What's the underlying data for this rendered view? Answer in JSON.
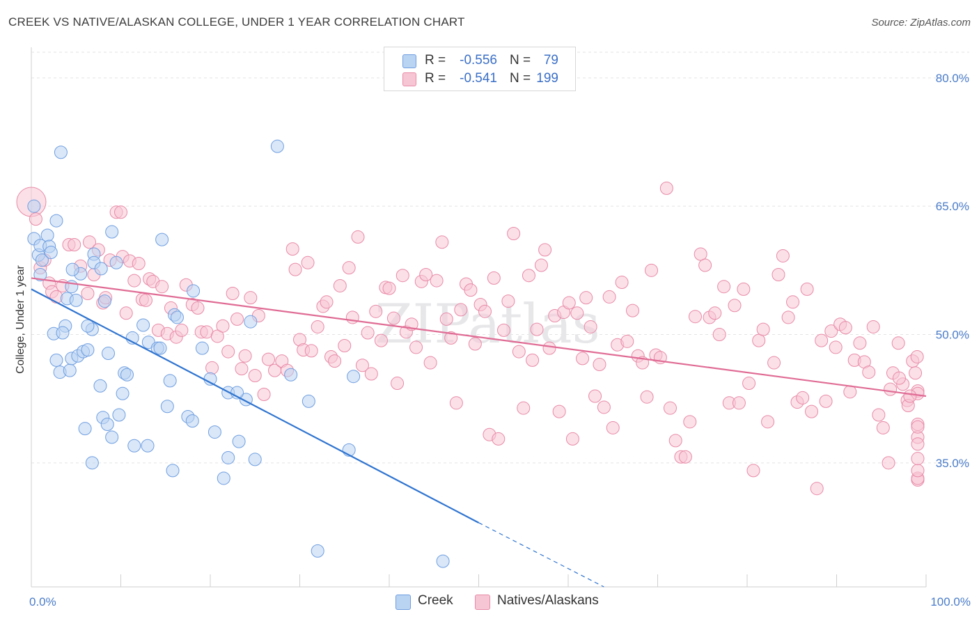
{
  "title": "CREEK VS NATIVE/ALASKAN COLLEGE, UNDER 1 YEAR CORRELATION CHART",
  "source": "Source: ZipAtlas.com",
  "watermark": "ZIPatlas",
  "colors": {
    "blue_fill": "#b9d3f3",
    "blue_stroke": "#6f9ee0",
    "blue_line": "#2f74d0",
    "pink_fill": "#f7c6d5",
    "pink_stroke": "#e88aa7",
    "pink_line": "#e06b94",
    "tick": "#4a7cc9",
    "grid": "#e3e3e3"
  },
  "legend": {
    "rows": [
      {
        "r_label": "R =",
        "r_value": "-0.556",
        "n_label": "N =",
        "n_value": "79"
      },
      {
        "r_label": "R =",
        "r_value": "-0.541",
        "n_label": "N =",
        "n_value": "199"
      }
    ]
  },
  "bottom_legend": {
    "creek": "Creek",
    "natives": "Natives/Alaskans"
  },
  "chart_data": {
    "type": "scatter",
    "xlabel": "",
    "ylabel": "College, Under 1 year",
    "xlim": [
      0,
      100
    ],
    "ylim": [
      20.5,
      83
    ],
    "x_tick_labels": [
      "0.0%",
      "100.0%"
    ],
    "y_ticks": [
      35,
      50,
      65,
      80
    ],
    "y_tick_labels": [
      "35.0%",
      "50.0%",
      "65.0%",
      "80.0%"
    ],
    "series": [
      {
        "name": "Creek",
        "trend": {
          "x0": 0,
          "y0": 55.3,
          "x1": 50,
          "y1": 28.0,
          "dash_to_x": 64,
          "dash_to_y": 20.5
        },
        "points": [
          [
            0.3,
            65.0
          ],
          [
            0.3,
            61.2
          ],
          [
            0.8,
            59.3
          ],
          [
            1.0,
            60.4
          ],
          [
            1.2,
            58.7
          ],
          [
            1.0,
            57.0
          ],
          [
            1.8,
            61.6
          ],
          [
            2.0,
            60.3
          ],
          [
            2.2,
            59.6
          ],
          [
            2.8,
            63.3
          ],
          [
            3.3,
            71.3
          ],
          [
            4.0,
            54.2
          ],
          [
            3.8,
            51.0
          ],
          [
            2.5,
            50.1
          ],
          [
            3.5,
            50.2
          ],
          [
            4.5,
            55.6
          ],
          [
            5.0,
            54.0
          ],
          [
            5.5,
            57.1
          ],
          [
            4.6,
            57.6
          ],
          [
            7.0,
            59.4
          ],
          [
            7.0,
            58.4
          ],
          [
            7.8,
            57.7
          ],
          [
            8.2,
            53.9
          ],
          [
            9.0,
            62.0
          ],
          [
            9.5,
            58.4
          ],
          [
            2.8,
            47.0
          ],
          [
            3.2,
            45.6
          ],
          [
            4.3,
            45.8
          ],
          [
            4.5,
            47.2
          ],
          [
            5.2,
            47.5
          ],
          [
            5.8,
            48.0
          ],
          [
            6.3,
            48.2
          ],
          [
            6.8,
            50.6
          ],
          [
            6.3,
            51.0
          ],
          [
            8.6,
            47.8
          ],
          [
            7.7,
            44.0
          ],
          [
            10.4,
            45.5
          ],
          [
            10.7,
            45.3
          ],
          [
            11.3,
            49.6
          ],
          [
            12.5,
            51.1
          ],
          [
            13.1,
            49.1
          ],
          [
            14.1,
            48.4
          ],
          [
            14.4,
            48.4
          ],
          [
            14.6,
            61.1
          ],
          [
            16.0,
            52.3
          ],
          [
            16.3,
            52.0
          ],
          [
            18.1,
            55.1
          ],
          [
            19.1,
            48.4
          ],
          [
            15.5,
            44.6
          ],
          [
            20.0,
            44.8
          ],
          [
            10.2,
            43.1
          ],
          [
            8.0,
            40.3
          ],
          [
            8.5,
            39.5
          ],
          [
            9.8,
            40.6
          ],
          [
            6.0,
            39.0
          ],
          [
            9.0,
            38.0
          ],
          [
            11.5,
            37.0
          ],
          [
            13.0,
            37.0
          ],
          [
            15.2,
            41.6
          ],
          [
            17.5,
            40.4
          ],
          [
            18.0,
            39.9
          ],
          [
            20.5,
            38.6
          ],
          [
            22.0,
            43.2
          ],
          [
            23.2,
            37.5
          ],
          [
            24.0,
            42.4
          ],
          [
            6.8,
            35.0
          ],
          [
            15.8,
            34.1
          ],
          [
            22.0,
            35.6
          ],
          [
            25.0,
            35.4
          ],
          [
            21.5,
            33.2
          ],
          [
            24.5,
            51.5
          ],
          [
            27.5,
            72.0
          ],
          [
            31.0,
            42.2
          ],
          [
            32.0,
            24.7
          ],
          [
            36.0,
            45.1
          ],
          [
            35.5,
            36.5
          ],
          [
            46.0,
            23.5
          ],
          [
            29.0,
            45.3
          ],
          [
            23.0,
            43.2
          ]
        ]
      },
      {
        "name": "Natives/Alaskans",
        "trend": {
          "x0": 0,
          "y0": 56.6,
          "x1": 100,
          "y1": 42.8
        },
        "points": [
          [
            0.0,
            65.5
          ],
          [
            0.5,
            63.5
          ],
          [
            1.0,
            57.8
          ],
          [
            1.5,
            58.7
          ],
          [
            2.0,
            56.0
          ],
          [
            2.3,
            55.0
          ],
          [
            2.8,
            54.4
          ],
          [
            3.5,
            55.7
          ],
          [
            4.2,
            60.5
          ],
          [
            4.8,
            60.5
          ],
          [
            5.5,
            58.0
          ],
          [
            6.3,
            54.8
          ],
          [
            6.5,
            60.8
          ],
          [
            7.0,
            57.0
          ],
          [
            7.5,
            59.9
          ],
          [
            8.0,
            53.7
          ],
          [
            8.3,
            54.3
          ],
          [
            8.8,
            58.7
          ],
          [
            9.5,
            64.3
          ],
          [
            10.0,
            64.3
          ],
          [
            10.2,
            59.1
          ],
          [
            10.6,
            52.5
          ],
          [
            11.0,
            58.6
          ],
          [
            11.5,
            56.3
          ],
          [
            12.0,
            58.3
          ],
          [
            12.4,
            54.1
          ],
          [
            12.8,
            54.0
          ],
          [
            13.2,
            56.5
          ],
          [
            13.6,
            56.2
          ],
          [
            14.2,
            50.5
          ],
          [
            14.6,
            55.6
          ],
          [
            15.2,
            50.1
          ],
          [
            15.6,
            53.1
          ],
          [
            16.2,
            49.7
          ],
          [
            16.8,
            50.5
          ],
          [
            17.3,
            55.8
          ],
          [
            18.0,
            53.5
          ],
          [
            18.6,
            53.1
          ],
          [
            19.0,
            50.3
          ],
          [
            19.6,
            50.3
          ],
          [
            20.2,
            46.1
          ],
          [
            20.8,
            49.8
          ],
          [
            21.4,
            51.0
          ],
          [
            22.0,
            48.0
          ],
          [
            22.5,
            54.8
          ],
          [
            23.0,
            51.8
          ],
          [
            23.5,
            46.0
          ],
          [
            23.9,
            47.5
          ],
          [
            24.5,
            54.3
          ],
          [
            25.0,
            45.2
          ],
          [
            25.4,
            52.2
          ],
          [
            26.0,
            43.0
          ],
          [
            26.5,
            47.1
          ],
          [
            27.2,
            45.8
          ],
          [
            28.0,
            46.9
          ],
          [
            28.6,
            45.8
          ],
          [
            29.2,
            60.0
          ],
          [
            29.5,
            57.6
          ],
          [
            30.0,
            49.4
          ],
          [
            30.4,
            48.2
          ],
          [
            30.9,
            58.4
          ],
          [
            31.3,
            48.1
          ],
          [
            32.0,
            50.9
          ],
          [
            32.6,
            53.3
          ],
          [
            33.0,
            53.8
          ],
          [
            33.5,
            47.4
          ],
          [
            33.9,
            46.9
          ],
          [
            34.5,
            55.7
          ],
          [
            35.0,
            48.7
          ],
          [
            35.5,
            57.8
          ],
          [
            35.9,
            52.0
          ],
          [
            36.5,
            61.4
          ],
          [
            37.0,
            46.4
          ],
          [
            37.6,
            50.2
          ],
          [
            38.0,
            45.4
          ],
          [
            38.5,
            52.7
          ],
          [
            39.1,
            49.3
          ],
          [
            39.6,
            55.5
          ],
          [
            40.0,
            55.4
          ],
          [
            40.5,
            51.9
          ],
          [
            40.9,
            44.3
          ],
          [
            41.5,
            56.9
          ],
          [
            41.9,
            50.3
          ],
          [
            42.5,
            51.2
          ],
          [
            43.0,
            48.5
          ],
          [
            43.6,
            56.2
          ],
          [
            44.1,
            57.0
          ],
          [
            44.6,
            46.7
          ],
          [
            45.3,
            56.3
          ],
          [
            45.9,
            60.8
          ],
          [
            46.4,
            51.8
          ],
          [
            46.9,
            49.6
          ],
          [
            47.5,
            42.0
          ],
          [
            48.0,
            52.9
          ],
          [
            48.6,
            55.9
          ],
          [
            49.1,
            55.2
          ],
          [
            49.6,
            48.9
          ],
          [
            50.2,
            53.5
          ],
          [
            50.7,
            52.7
          ],
          [
            51.2,
            38.3
          ],
          [
            51.7,
            56.6
          ],
          [
            52.2,
            37.8
          ],
          [
            52.8,
            50.5
          ],
          [
            53.3,
            53.9
          ],
          [
            53.9,
            61.8
          ],
          [
            54.5,
            48.0
          ],
          [
            55.0,
            41.4
          ],
          [
            55.6,
            56.9
          ],
          [
            56.0,
            47.0
          ],
          [
            56.5,
            50.6
          ],
          [
            57.0,
            58.1
          ],
          [
            57.4,
            59.9
          ],
          [
            57.9,
            48.4
          ],
          [
            58.5,
            52.2
          ],
          [
            59.0,
            41.0
          ],
          [
            59.5,
            52.6
          ],
          [
            60.1,
            53.7
          ],
          [
            60.5,
            37.8
          ],
          [
            61.0,
            52.5
          ],
          [
            61.6,
            47.2
          ],
          [
            62.0,
            54.3
          ],
          [
            62.5,
            50.9
          ],
          [
            63.0,
            42.8
          ],
          [
            63.5,
            46.5
          ],
          [
            64.0,
            41.5
          ],
          [
            64.6,
            54.4
          ],
          [
            65.0,
            39.1
          ],
          [
            65.5,
            48.8
          ],
          [
            66.0,
            56.1
          ],
          [
            66.6,
            49.2
          ],
          [
            67.2,
            52.8
          ],
          [
            67.8,
            47.5
          ],
          [
            68.3,
            46.7
          ],
          [
            68.8,
            42.7
          ],
          [
            69.3,
            57.5
          ],
          [
            69.8,
            47.6
          ],
          [
            70.3,
            47.3
          ],
          [
            71.0,
            67.1
          ],
          [
            71.4,
            41.4
          ],
          [
            72.0,
            37.6
          ],
          [
            72.6,
            35.7
          ],
          [
            73.1,
            35.7
          ],
          [
            73.6,
            39.8
          ],
          [
            74.2,
            52.1
          ],
          [
            74.8,
            59.4
          ],
          [
            75.3,
            58.1
          ],
          [
            75.8,
            52.0
          ],
          [
            76.4,
            52.5
          ],
          [
            76.9,
            50.0
          ],
          [
            77.4,
            55.6
          ],
          [
            78.0,
            42.0
          ],
          [
            78.6,
            53.4
          ],
          [
            79.1,
            42.0
          ],
          [
            79.6,
            55.3
          ],
          [
            80.2,
            44.3
          ],
          [
            80.7,
            34.1
          ],
          [
            81.3,
            49.3
          ],
          [
            81.8,
            50.6
          ],
          [
            82.3,
            39.8
          ],
          [
            83.0,
            46.7
          ],
          [
            83.5,
            57.0
          ],
          [
            84.0,
            59.2
          ],
          [
            84.6,
            52.0
          ],
          [
            85.1,
            53.8
          ],
          [
            85.6,
            42.1
          ],
          [
            86.2,
            42.6
          ],
          [
            86.7,
            55.3
          ],
          [
            87.2,
            41.0
          ],
          [
            87.8,
            32.0
          ],
          [
            88.3,
            49.3
          ],
          [
            88.8,
            42.2
          ],
          [
            89.4,
            50.4
          ],
          [
            89.9,
            48.5
          ],
          [
            90.4,
            51.2
          ],
          [
            91.0,
            50.8
          ],
          [
            91.5,
            43.3
          ],
          [
            92.0,
            47.0
          ],
          [
            92.6,
            49.0
          ],
          [
            93.1,
            46.8
          ],
          [
            93.6,
            45.6
          ],
          [
            94.1,
            50.9
          ],
          [
            94.7,
            40.6
          ],
          [
            95.2,
            39.1
          ],
          [
            95.8,
            35.0
          ],
          [
            96.3,
            45.5
          ],
          [
            96.9,
            49.0
          ],
          [
            97.4,
            44.2
          ],
          [
            97.9,
            42.3
          ],
          [
            98.5,
            46.9
          ],
          [
            99.0,
            47.4
          ],
          [
            99.5,
            43.4
          ],
          [
            100.0,
            43.1
          ],
          [
            96.0,
            43.6
          ],
          [
            97.0,
            44.9
          ],
          [
            98.0,
            41.7
          ],
          [
            98.8,
            45.5
          ],
          [
            99.2,
            38.0
          ],
          [
            99.7,
            39.5
          ],
          [
            100.5,
            37.2
          ],
          [
            101.0,
            39.2
          ],
          [
            101.5,
            33.0
          ],
          [
            102.0,
            33.2
          ],
          [
            102.5,
            34.1
          ],
          [
            103.0,
            35.5
          ],
          [
            98.2,
            42.8
          ]
        ]
      }
    ]
  }
}
